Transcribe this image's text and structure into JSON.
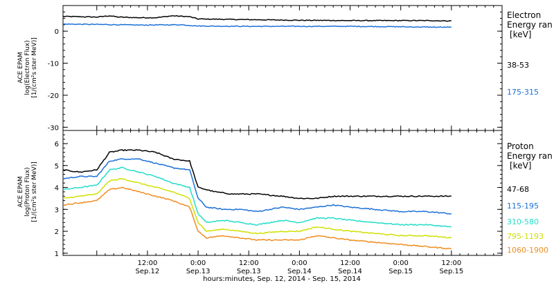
{
  "chart_data": {
    "type": "line",
    "x_axis": {
      "label": "hours:minutes, Sep. 12, 2014 - Sep. 15, 2014",
      "range_hours": [
        -8,
        96
      ],
      "ticks": [
        {
          "hour": 12,
          "time": "12:00",
          "date": "Sep.12"
        },
        {
          "hour": 24,
          "time": "0:00",
          "date": "Sep.13"
        },
        {
          "hour": 36,
          "time": "12:00",
          "date": "Sep.13"
        },
        {
          "hour": 48,
          "time": "0:00",
          "date": "Sep.14"
        },
        {
          "hour": 60,
          "time": "12:00",
          "date": "Sep.14"
        },
        {
          "hour": 72,
          "time": "0:00",
          "date": "Sep.15"
        },
        {
          "hour": 84,
          "time": "12:00",
          "date": "Sep.15"
        }
      ]
    },
    "panels": [
      {
        "id": "electron",
        "ylabel_lines": [
          "ACE EPAM",
          "log(Electron Flux)",
          "[1/(cm²s ster MeV)]"
        ],
        "ylim": [
          -31,
          8
        ],
        "yticks": [
          0,
          -10,
          -20,
          -30
        ],
        "legend_title": [
          "Electron",
          "Energy ran",
          "[keV]"
        ],
        "series": [
          {
            "name": "38-53",
            "color": "#000000",
            "points": [
              [
                -8,
                4.6
              ],
              [
                0,
                4.4
              ],
              [
                3,
                4.8
              ],
              [
                5,
                4.4
              ],
              [
                10,
                4.2
              ],
              [
                14,
                4.2
              ],
              [
                18,
                4.8
              ],
              [
                22,
                4.5
              ],
              [
                24,
                3.8
              ],
              [
                36,
                3.6
              ],
              [
                48,
                3.4
              ],
              [
                60,
                3.3
              ],
              [
                72,
                3.3
              ],
              [
                78,
                3.3
              ],
              [
                84,
                3.2
              ]
            ]
          },
          {
            "name": "175-315",
            "color": "#1a70d8",
            "points": [
              [
                -8,
                2.2
              ],
              [
                0,
                2.1
              ],
              [
                10,
                1.9
              ],
              [
                20,
                2.0
              ],
              [
                24,
                1.6
              ],
              [
                36,
                1.5
              ],
              [
                48,
                1.5
              ],
              [
                60,
                1.5
              ],
              [
                70,
                1.4
              ],
              [
                76,
                1.3
              ],
              [
                84,
                1.2
              ]
            ]
          }
        ]
      },
      {
        "id": "proton",
        "ylabel_lines": [
          "ACE EPAM",
          "log(Proton Flux)",
          "[1/(cm²s ster MeV)]"
        ],
        "ylim": [
          0.9,
          6.6
        ],
        "yticks": [
          1,
          2,
          3,
          4,
          5,
          6
        ],
        "legend_title": [
          "Proton",
          "Energy ran",
          "[keV]"
        ],
        "series": [
          {
            "name": "47-68",
            "color": "#000000",
            "points": [
              [
                -8,
                4.8
              ],
              [
                -4,
                4.7
              ],
              [
                0,
                4.8
              ],
              [
                3,
                5.6
              ],
              [
                6,
                5.7
              ],
              [
                10,
                5.7
              ],
              [
                14,
                5.6
              ],
              [
                18,
                5.3
              ],
              [
                22,
                5.2
              ],
              [
                24,
                4.0
              ],
              [
                28,
                3.8
              ],
              [
                32,
                3.7
              ],
              [
                38,
                3.7
              ],
              [
                44,
                3.6
              ],
              [
                48,
                3.5
              ],
              [
                52,
                3.5
              ],
              [
                56,
                3.6
              ],
              [
                60,
                3.6
              ],
              [
                66,
                3.6
              ],
              [
                70,
                3.6
              ],
              [
                76,
                3.6
              ],
              [
                84,
                3.6
              ]
            ]
          },
          {
            "name": "115-195",
            "color": "#1a70d8",
            "points": [
              [
                -8,
                4.4
              ],
              [
                -4,
                4.5
              ],
              [
                0,
                4.5
              ],
              [
                3,
                5.2
              ],
              [
                6,
                5.3
              ],
              [
                10,
                5.3
              ],
              [
                14,
                5.1
              ],
              [
                18,
                4.9
              ],
              [
                22,
                4.8
              ],
              [
                24,
                3.5
              ],
              [
                26,
                3.1
              ],
              [
                30,
                3.0
              ],
              [
                34,
                3.0
              ],
              [
                38,
                2.9
              ],
              [
                44,
                3.1
              ],
              [
                48,
                3.0
              ],
              [
                52,
                3.1
              ],
              [
                56,
                3.2
              ],
              [
                60,
                3.1
              ],
              [
                66,
                3.0
              ],
              [
                72,
                2.9
              ],
              [
                78,
                2.9
              ],
              [
                84,
                2.8
              ]
            ]
          },
          {
            "name": "310-580",
            "color": "#22dcc8",
            "points": [
              [
                -8,
                3.9
              ],
              [
                -4,
                4.0
              ],
              [
                0,
                4.1
              ],
              [
                3,
                4.8
              ],
              [
                6,
                4.9
              ],
              [
                10,
                4.7
              ],
              [
                14,
                4.5
              ],
              [
                18,
                4.2
              ],
              [
                22,
                4.0
              ],
              [
                24,
                2.8
              ],
              [
                26,
                2.4
              ],
              [
                30,
                2.5
              ],
              [
                34,
                2.4
              ],
              [
                38,
                2.3
              ],
              [
                44,
                2.5
              ],
              [
                48,
                2.4
              ],
              [
                52,
                2.6
              ],
              [
                56,
                2.6
              ],
              [
                60,
                2.5
              ],
              [
                66,
                2.4
              ],
              [
                72,
                2.3
              ],
              [
                78,
                2.3
              ],
              [
                84,
                2.2
              ]
            ]
          },
          {
            "name": "795-1193",
            "color": "#cfe000",
            "points": [
              [
                -8,
                3.5
              ],
              [
                -4,
                3.6
              ],
              [
                0,
                3.7
              ],
              [
                3,
                4.3
              ],
              [
                6,
                4.4
              ],
              [
                10,
                4.2
              ],
              [
                14,
                4.0
              ],
              [
                18,
                3.8
              ],
              [
                22,
                3.5
              ],
              [
                24,
                2.4
              ],
              [
                26,
                2.0
              ],
              [
                30,
                2.1
              ],
              [
                34,
                2.0
              ],
              [
                38,
                1.9
              ],
              [
                44,
                2.0
              ],
              [
                48,
                2.0
              ],
              [
                52,
                2.2
              ],
              [
                56,
                2.1
              ],
              [
                60,
                2.0
              ],
              [
                66,
                1.9
              ],
              [
                72,
                1.8
              ],
              [
                78,
                1.8
              ],
              [
                84,
                1.7
              ]
            ]
          },
          {
            "name": "1060-1900",
            "color": "#f08c1e",
            "points": [
              [
                -8,
                3.2
              ],
              [
                -4,
                3.3
              ],
              [
                0,
                3.4
              ],
              [
                3,
                3.9
              ],
              [
                6,
                4.0
              ],
              [
                10,
                3.8
              ],
              [
                14,
                3.6
              ],
              [
                18,
                3.4
              ],
              [
                22,
                3.1
              ],
              [
                24,
                2.0
              ],
              [
                26,
                1.7
              ],
              [
                30,
                1.8
              ],
              [
                34,
                1.7
              ],
              [
                38,
                1.6
              ],
              [
                44,
                1.6
              ],
              [
                48,
                1.6
              ],
              [
                52,
                1.8
              ],
              [
                56,
                1.7
              ],
              [
                60,
                1.6
              ],
              [
                66,
                1.5
              ],
              [
                72,
                1.4
              ],
              [
                78,
                1.3
              ],
              [
                84,
                1.2
              ]
            ]
          }
        ]
      }
    ]
  }
}
